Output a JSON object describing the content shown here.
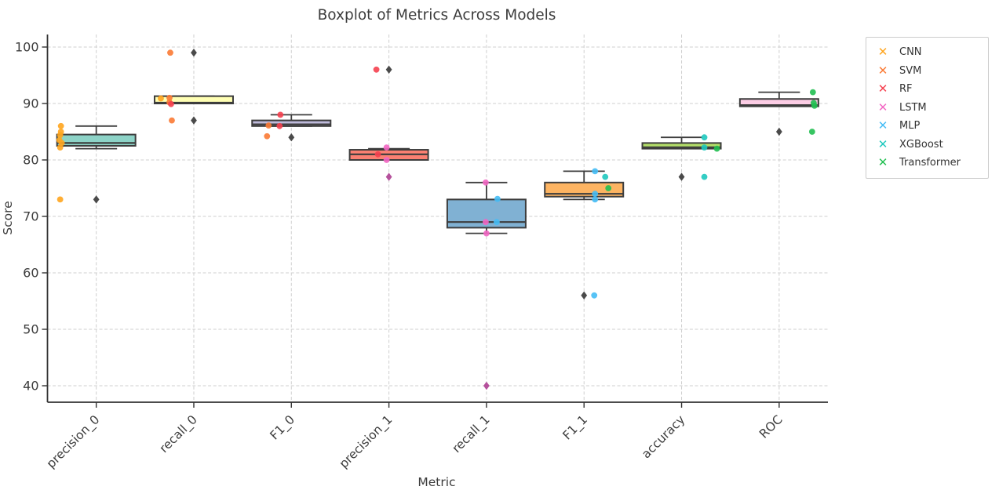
{
  "chart_data": {
    "type": "box",
    "title": "Boxplot of Metrics Across Models",
    "xlabel": "Metric",
    "ylabel": "Score",
    "categories": [
      "precision_0",
      "recall_0",
      "F1_0",
      "precision_1",
      "recall_1",
      "F1_1",
      "accuracy",
      "ROC"
    ],
    "yticks": [
      40,
      50,
      60,
      70,
      80,
      90,
      100
    ],
    "ylim": [
      37.5,
      102
    ],
    "grid": true,
    "legend_position": "outside-upper-right",
    "legend_marker": "x",
    "legend": [
      {
        "label": "CNN",
        "color": "#FFA51E"
      },
      {
        "label": "SVM",
        "color": "#FB7A34"
      },
      {
        "label": "RF",
        "color": "#F5404F"
      },
      {
        "label": "LSTM",
        "color": "#F266C3"
      },
      {
        "label": "MLP",
        "color": "#45BCF5"
      },
      {
        "label": "XGBoost",
        "color": "#1EC8BE"
      },
      {
        "label": "Transformer",
        "color": "#21BF51"
      }
    ],
    "boxes": [
      {
        "metric": "precision_0",
        "color": "#8dd3c7",
        "whisker_low": 82,
        "q1": 82.5,
        "median": 83,
        "q3": 84.5,
        "whisker_high": 86,
        "outliers": [
          {
            "value": 73
          }
        ]
      },
      {
        "metric": "recall_0",
        "color": "#ffffb3",
        "whisker_low": 90,
        "q1": 90,
        "median": 90.15,
        "q3": 91.3,
        "whisker_high": 91.3,
        "outliers": [
          {
            "value": 99
          },
          {
            "value": 87
          }
        ]
      },
      {
        "metric": "F1_0",
        "color": "#bebada",
        "whisker_low": 86,
        "q1": 86,
        "median": 86.3,
        "q3": 87,
        "whisker_high": 88,
        "outliers": [
          {
            "value": 84
          }
        ]
      },
      {
        "metric": "precision_1",
        "color": "#fb8072",
        "whisker_low": 80,
        "q1": 80,
        "median": 81,
        "q3": 81.8,
        "whisker_high": 82,
        "outliers": [
          {
            "value": 96
          },
          {
            "value": 77,
            "color": "#B5519C"
          }
        ]
      },
      {
        "metric": "recall_1",
        "color": "#80b1d3",
        "whisker_low": 67,
        "q1": 68,
        "median": 69,
        "q3": 73,
        "whisker_high": 76,
        "outliers": [
          {
            "value": 40,
            "color": "#B5519C"
          }
        ]
      },
      {
        "metric": "F1_1",
        "color": "#fdb462",
        "whisker_low": 73,
        "q1": 73.5,
        "median": 74,
        "q3": 76,
        "whisker_high": 78,
        "outliers": [
          {
            "value": 56
          }
        ]
      },
      {
        "metric": "accuracy",
        "color": "#b3de69",
        "whisker_low": 82,
        "q1": 82,
        "median": 82.25,
        "q3": 83,
        "whisker_high": 84,
        "outliers": [
          {
            "value": 77
          }
        ]
      },
      {
        "metric": "ROC",
        "color": "#fccde5",
        "whisker_low": 89.5,
        "q1": 89.5,
        "median": 89.7,
        "q3": 90.8,
        "whisker_high": 92,
        "outliers": [
          {
            "value": 85
          }
        ]
      }
    ],
    "points": [
      {
        "metric": "precision_0",
        "model": "CNN",
        "value": 86,
        "dx": -45
      },
      {
        "metric": "precision_0",
        "model": "CNN",
        "value": 85,
        "dx": -45
      },
      {
        "metric": "precision_0",
        "model": "CNN",
        "value": 84.4,
        "dx": -46
      },
      {
        "metric": "precision_0",
        "model": "CNN",
        "value": 83.5,
        "dx": -47
      },
      {
        "metric": "precision_0",
        "model": "CNN",
        "value": 83,
        "dx": -44
      },
      {
        "metric": "precision_0",
        "model": "CNN",
        "value": 82.2,
        "dx": -46
      },
      {
        "metric": "precision_0",
        "model": "CNN",
        "value": 73,
        "dx": -46
      },
      {
        "metric": "recall_0",
        "model": "SVM",
        "value": 99,
        "dx": -30
      },
      {
        "metric": "recall_0",
        "model": "CNN",
        "value": 90.9,
        "dx": -42
      },
      {
        "metric": "recall_0",
        "model": "SVM",
        "value": 91,
        "dx": -31
      },
      {
        "metric": "recall_0",
        "model": "SVM",
        "value": 90.2,
        "dx": -31
      },
      {
        "metric": "recall_0",
        "model": "RF",
        "value": 89.9,
        "dx": -29
      },
      {
        "metric": "recall_0",
        "model": "SVM",
        "value": 87,
        "dx": -28
      },
      {
        "metric": "F1_0",
        "model": "RF",
        "value": 88,
        "dx": -14
      },
      {
        "metric": "F1_0",
        "model": "SVM",
        "value": 86.1,
        "dx": -29
      },
      {
        "metric": "F1_0",
        "model": "RF",
        "value": 86,
        "dx": -15
      },
      {
        "metric": "F1_0",
        "model": "SVM",
        "value": 84.2,
        "dx": -31
      },
      {
        "metric": "precision_1",
        "model": "RF",
        "value": 96,
        "dx": -16
      },
      {
        "metric": "precision_1",
        "model": "LSTM",
        "value": 82.2,
        "dx": -3
      },
      {
        "metric": "precision_1",
        "model": "RF",
        "value": 81,
        "dx": -14
      },
      {
        "metric": "precision_1",
        "model": "LSTM",
        "value": 80,
        "dx": -3
      },
      {
        "metric": "recall_1",
        "model": "LSTM",
        "value": 76,
        "dx": -1
      },
      {
        "metric": "recall_1",
        "model": "MLP",
        "value": 73.1,
        "dx": 14
      },
      {
        "metric": "recall_1",
        "model": "LSTM",
        "value": 69,
        "dx": -1
      },
      {
        "metric": "recall_1",
        "model": "MLP",
        "value": 69,
        "dx": 13
      },
      {
        "metric": "recall_1",
        "model": "LSTM",
        "value": 67,
        "dx": 0
      },
      {
        "metric": "F1_1",
        "model": "MLP",
        "value": 78,
        "dx": 14
      },
      {
        "metric": "F1_1",
        "model": "XGBoost",
        "value": 77,
        "dx": 27
      },
      {
        "metric": "F1_1",
        "model": "Transformer",
        "value": 75,
        "dx": 31
      },
      {
        "metric": "F1_1",
        "model": "MLP",
        "value": 74,
        "dx": 14
      },
      {
        "metric": "F1_1",
        "model": "MLP",
        "value": 73,
        "dx": 14
      },
      {
        "metric": "F1_1",
        "model": "MLP",
        "value": 56,
        "dx": 13
      },
      {
        "metric": "accuracy",
        "model": "XGBoost",
        "value": 84,
        "dx": 29
      },
      {
        "metric": "accuracy",
        "model": "XGBoost",
        "value": 82.2,
        "dx": 29
      },
      {
        "metric": "accuracy",
        "model": "Transformer",
        "value": 82,
        "dx": 45
      },
      {
        "metric": "accuracy",
        "model": "XGBoost",
        "value": 77,
        "dx": 29
      },
      {
        "metric": "ROC",
        "model": "Transformer",
        "value": 92,
        "dx": 43
      },
      {
        "metric": "ROC",
        "model": "Transformer",
        "value": 90.1,
        "dx": 44
      },
      {
        "metric": "ROC",
        "model": "Transformer",
        "value": 89.6,
        "dx": 45
      },
      {
        "metric": "ROC",
        "model": "Transformer",
        "value": 85,
        "dx": 42
      }
    ],
    "style": {
      "box_edge": "#3D3D3D",
      "outlier_color": "#4A4A4A",
      "grid_color": "#CFCFCF",
      "axis_color": "#333333",
      "text_color": "#3C3C3C",
      "legend_border": "#CCCCCC",
      "background": "#FFFFFF"
    }
  }
}
